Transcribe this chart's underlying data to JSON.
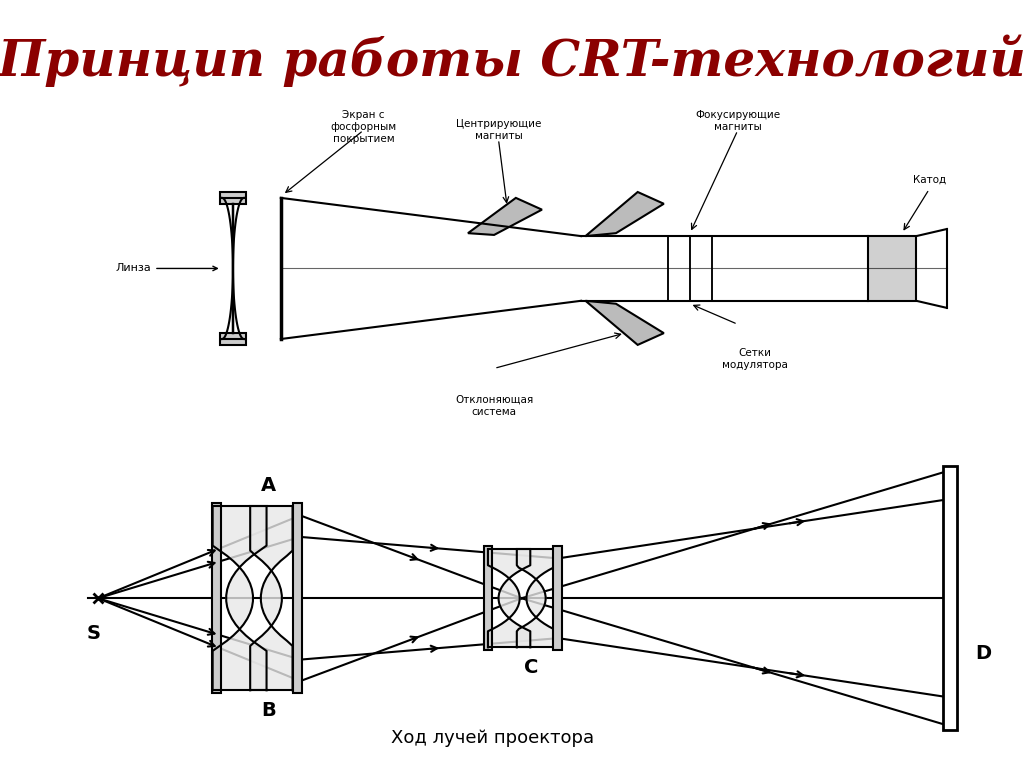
{
  "title": "Принцип работы CRT-технологий",
  "title_color": "#8B0000",
  "title_fontsize": 36,
  "bg_color": "#FFFFFF",
  "caption": "Ход лучей проектора",
  "caption_fontsize": 13,
  "label_S": "S",
  "label_A": "A",
  "label_B": "B",
  "label_C": "C",
  "label_D": "D",
  "label_linza": "Линза",
  "label_screen": "Экран с\nфосфорным\nпокрытием",
  "label_centr": "Центрирующие\nмагниты",
  "label_focus": "Фокусирующие\nмагниты",
  "label_katod": "Катод",
  "label_setka": "Сетки\nмодулятора",
  "label_otkl": "Отклоняющая\nсистема",
  "line_color": "#000000",
  "line_width": 1.5
}
